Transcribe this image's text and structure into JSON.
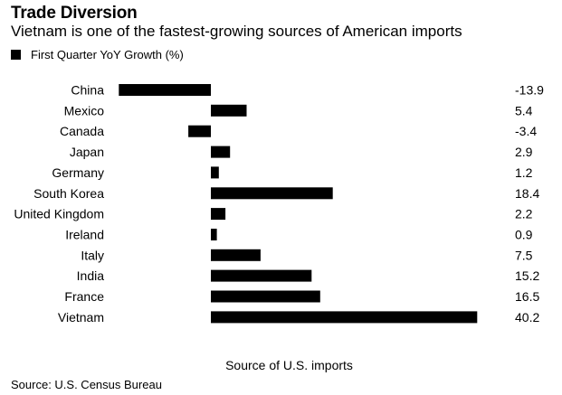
{
  "header": {
    "title": "Trade Diversion",
    "subtitle": "Vietnam is one of the fastest-growing sources of American imports"
  },
  "legend": {
    "label": "First Quarter YoY Growth (%)",
    "color": "#000000"
  },
  "footer": {
    "source": "Source: U.S. Census Bureau"
  },
  "chart_data": {
    "type": "bar",
    "orientation": "horizontal",
    "title": "Trade Diversion",
    "subtitle": "Vietnam is one of the fastest-growing sources of American imports",
    "xlabel": "Source of U.S. imports",
    "ylabel": "",
    "categories": [
      "China",
      "Mexico",
      "Canada",
      "Japan",
      "Germany",
      "South Korea",
      "United Kingdom",
      "Ireland",
      "Italy",
      "India",
      "France",
      "Vietnam"
    ],
    "series": [
      {
        "name": "First Quarter YoY Growth (%)",
        "color": "#000000",
        "values": [
          -13.9,
          5.4,
          -3.4,
          2.9,
          1.2,
          18.4,
          2.2,
          0.9,
          7.5,
          15.2,
          16.5,
          40.2
        ]
      }
    ],
    "value_labels": [
      "-13.9",
      "5.4",
      "-3.4",
      "2.9",
      "1.2",
      "18.4",
      "2.2",
      "0.9",
      "7.5",
      "15.2",
      "16.5",
      "40.2"
    ],
    "xlim": [
      -14,
      40.2
    ],
    "grid": false,
    "legend_position": "top-left"
  }
}
